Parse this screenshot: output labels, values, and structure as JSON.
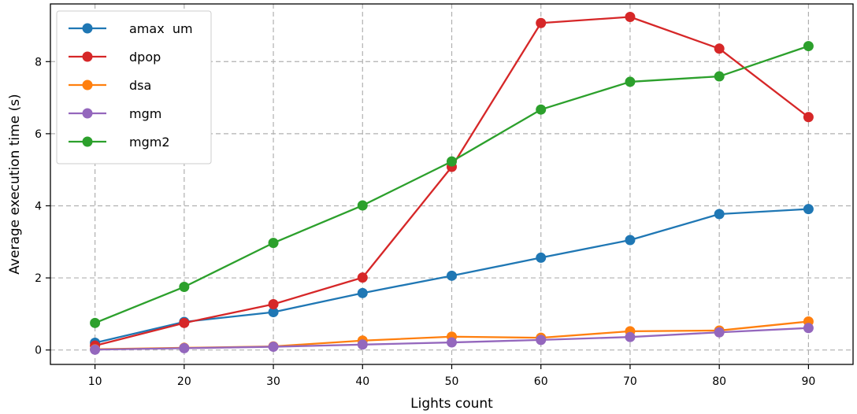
{
  "chart_data": {
    "type": "line",
    "xlabel": "Lights count",
    "ylabel": "Average execution time (s)",
    "x": [
      10,
      20,
      30,
      40,
      50,
      60,
      70,
      80,
      90
    ],
    "xlim": [
      5,
      95
    ],
    "ylim": [
      -0.4,
      9.6
    ],
    "xticks": [
      10,
      20,
      30,
      40,
      50,
      60,
      70,
      80,
      90
    ],
    "yticks": [
      0,
      2,
      4,
      6,
      8
    ],
    "grid": true,
    "grid_style": "dashed",
    "legend_position": "top-left",
    "series": [
      {
        "name": "amax  um",
        "color": "#1f77b4",
        "values": [
          0.2,
          0.78,
          1.05,
          1.58,
          2.06,
          2.56,
          3.05,
          3.77,
          3.91
        ]
      },
      {
        "name": "dpop",
        "color": "#d62728",
        "values": [
          0.12,
          0.75,
          1.27,
          2.01,
          5.08,
          9.07,
          9.24,
          8.36,
          6.46
        ]
      },
      {
        "name": "dsa",
        "color": "#ff7f0e",
        "values": [
          0.02,
          0.06,
          0.1,
          0.26,
          0.37,
          0.34,
          0.52,
          0.54,
          0.79
        ]
      },
      {
        "name": "mgm",
        "color": "#9467bd",
        "values": [
          0.01,
          0.05,
          0.09,
          0.15,
          0.21,
          0.28,
          0.36,
          0.49,
          0.61
        ]
      },
      {
        "name": "mgm2",
        "color": "#2ca02c",
        "values": [
          0.75,
          1.75,
          2.97,
          4.01,
          5.23,
          6.67,
          7.44,
          7.59,
          8.43
        ]
      }
    ]
  }
}
